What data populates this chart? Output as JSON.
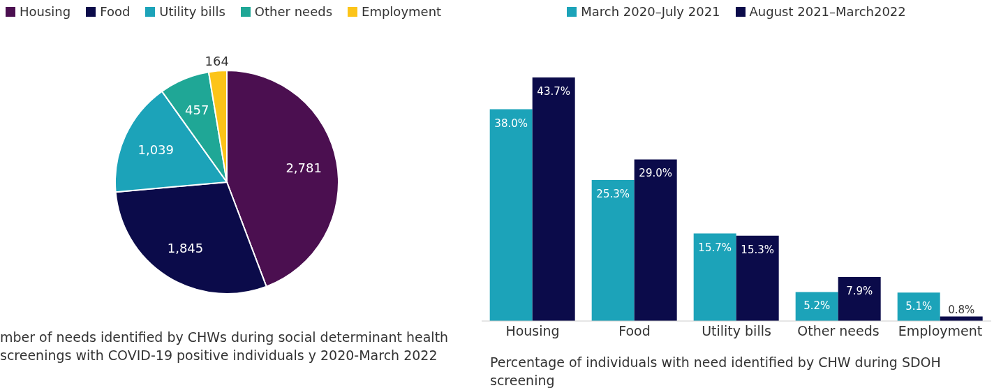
{
  "chart_data": [
    {
      "type": "pie",
      "title": "mber of needs identified by CHWs during social determinant health screenings with COVID-19 positive individuals y 2020-March 2022",
      "categories": [
        "Housing",
        "Food",
        "Utility bills",
        "Other needs",
        "Employment"
      ],
      "values": [
        2781,
        1845,
        1039,
        457,
        164
      ],
      "value_labels": [
        "2,781",
        "1,845",
        "1,039",
        "457",
        "164"
      ],
      "colors": [
        "#4b0f50",
        "#0b0b4a",
        "#1ca3b9",
        "#1fa796",
        "#fcc419"
      ],
      "legend": "top left"
    },
    {
      "type": "bar",
      "title": "Percentage of individuals with need identified by CHW during SDOH screening",
      "categories": [
        "Housing",
        "Food",
        "Utility bills",
        "Other needs",
        "Employment"
      ],
      "legend": "top",
      "series": [
        {
          "name": "March 2020–July 2021",
          "color": "#1ca3b9",
          "values": [
            38.0,
            25.3,
            15.7,
            5.2,
            5.1
          ],
          "value_labels": [
            "38.0%",
            "25.3%",
            "15.7%",
            "5.2%",
            "5.1%"
          ]
        },
        {
          "name": "August 2021–March2022",
          "color": "#0b0b4a",
          "values": [
            43.7,
            29.0,
            15.3,
            7.9,
            0.8
          ],
          "value_labels": [
            "43.7%",
            "29.0%",
            "15.3%",
            "7.9%",
            "0.8%"
          ]
        }
      ]
    }
  ]
}
